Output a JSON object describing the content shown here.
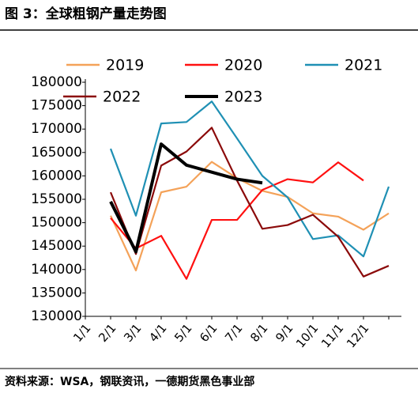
{
  "chart_data": {
    "type": "line",
    "title": "图 3：全球粗钢产量走势图",
    "source": "资料来源：WSA，钢联资讯，一德期货黑色事业部",
    "categories": [
      "1/1",
      "2/1",
      "3/1",
      "4/1",
      "5/1",
      "6/1",
      "7/1",
      "8/1",
      "9/1",
      "10/1",
      "11/1",
      "12/1",
      null
    ],
    "series": [
      {
        "name": "2019",
        "color": "#f4a259",
        "values": [
          null,
          151500,
          139800,
          156500,
          157700,
          163000,
          159500,
          156800,
          155500,
          152000,
          151300,
          148500,
          152000
        ]
      },
      {
        "name": "2020",
        "color": "#ff1010",
        "values": [
          null,
          151000,
          144500,
          147200,
          138000,
          150600,
          150600,
          157000,
          159300,
          158600,
          162900,
          159000,
          null
        ]
      },
      {
        "name": "2021",
        "color": "#1f90b4",
        "values": [
          null,
          165800,
          151500,
          171200,
          171500,
          175900,
          168000,
          160000,
          155400,
          146500,
          147300,
          142800,
          157700
        ]
      },
      {
        "name": "2022",
        "color": "#8b0a0a",
        "values": [
          null,
          156500,
          143300,
          162200,
          165200,
          170300,
          159000,
          148700,
          149500,
          151700,
          147000,
          138500,
          140800
        ]
      },
      {
        "name": "2023",
        "color": "#000000",
        "values": [
          null,
          154500,
          143800,
          166800,
          162300,
          160800,
          159300,
          158500,
          null,
          null,
          null,
          null,
          null
        ]
      }
    ],
    "ylim": [
      130000,
      180000
    ],
    "yticks": [
      130000,
      135000,
      140000,
      145000,
      150000,
      155000,
      160000,
      165000,
      170000,
      175000,
      180000
    ],
    "grid": false
  }
}
